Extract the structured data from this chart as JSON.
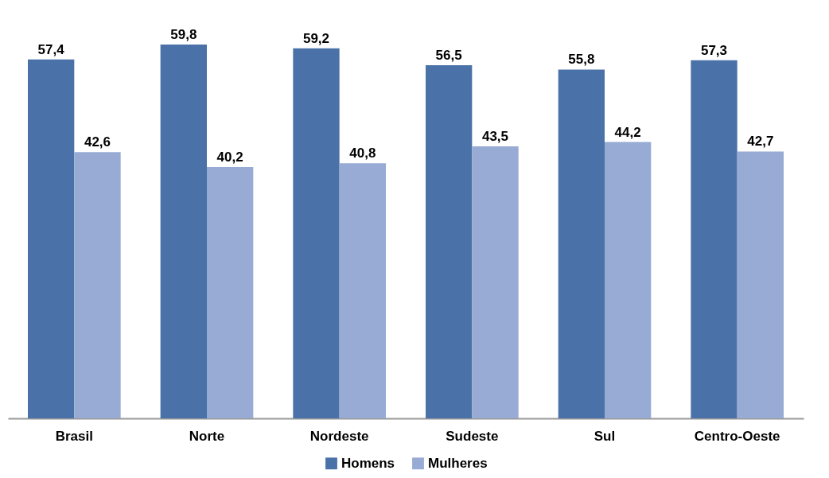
{
  "chart_data": {
    "type": "bar",
    "categories": [
      "Brasil",
      "Norte",
      "Nordeste",
      "Sudeste",
      "Sul",
      "Centro-Oeste"
    ],
    "series": [
      {
        "name": "Homens",
        "color": "#4a72a8",
        "values": [
          57.4,
          59.8,
          59.2,
          56.5,
          55.8,
          57.3
        ],
        "value_labels": [
          "57,4",
          "59,8",
          "59,2",
          "56,5",
          "55,8",
          "57,3"
        ]
      },
      {
        "name": "Mulheres",
        "color": "#97abd4",
        "values": [
          42.6,
          40.2,
          40.8,
          43.5,
          44.2,
          42.7
        ],
        "value_labels": [
          "42,6",
          "40,2",
          "40,8",
          "43,5",
          "44,2",
          "42,7"
        ]
      }
    ],
    "legend": "bottom",
    "grid": false
  }
}
